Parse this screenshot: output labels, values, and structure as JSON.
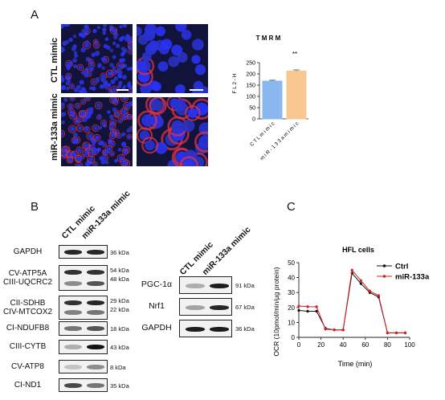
{
  "panels": {
    "a": "A",
    "b": "B",
    "c": "C"
  },
  "microscopy": {
    "row_labels": [
      "CTL mimic",
      "miR-133a mimic"
    ]
  },
  "tmrm_chart": {
    "chart_data": {
      "type": "bar",
      "title": "T M R M",
      "ylabel": "F L 2 - H",
      "categories": [
        "C T L  m i m i c",
        "m i R - 1 3 3 a  m i m i c"
      ],
      "values": [
        168,
        213
      ],
      "errors": [
        4,
        5
      ],
      "ylim": [
        0,
        250
      ],
      "yticks": [
        0,
        50,
        100,
        150,
        200,
        250
      ],
      "colors": [
        "#8ab8ee",
        "#f9c890"
      ],
      "annotation": "**"
    }
  },
  "blot_left": {
    "lanes": [
      "CTL mimic",
      "miR-133a mimic"
    ],
    "rows": [
      {
        "label": "GAPDH",
        "kda": [
          "36 kDa"
        ]
      },
      {
        "label": "CV-ATP5A\nCIII-UQCRC2",
        "kda": [
          "54 kDa",
          "48 kDa"
        ]
      },
      {
        "label": "CII-SDHB\nCIV-MTCOX2",
        "kda": [
          "29 kDa",
          "22 kDa"
        ]
      },
      {
        "label": "CI-NDUFB8",
        "kda": [
          "18 kDa"
        ]
      },
      {
        "label": "CIII-CYTB",
        "kda": [
          "43 kDa"
        ]
      },
      {
        "label": "CV-ATP8",
        "kda": [
          "8 kDa"
        ]
      },
      {
        "label": "CI-ND1",
        "kda": [
          "35 kDa"
        ]
      }
    ]
  },
  "blot_right": {
    "lanes": [
      "CTL mimic",
      "miR-133a mimic"
    ],
    "rows": [
      {
        "label": "PGC-1α",
        "kda": "91 kDa"
      },
      {
        "label": "Nrf1",
        "kda": "67 kDa"
      },
      {
        "label": "GAPDH",
        "kda": "36 kDa"
      }
    ]
  },
  "ocr_chart": {
    "chart_data": {
      "type": "line",
      "title": "HFL cells",
      "xlabel": "Time (min)",
      "ylabel": "OCR (10pmol/min/μg protein)",
      "xlim": [
        0,
        100
      ],
      "ylim": [
        0,
        50
      ],
      "xticks": [
        0,
        20,
        40,
        60,
        80,
        100
      ],
      "yticks": [
        0,
        10,
        20,
        30,
        40,
        50
      ],
      "x": [
        0,
        8,
        16,
        24,
        32,
        40,
        48,
        56,
        64,
        72,
        80,
        88,
        96
      ],
      "series": [
        {
          "name": "Ctrl",
          "color": "#111111",
          "values": [
            18,
            17.5,
            17.5,
            6,
            5,
            5,
            43,
            36,
            30,
            27,
            3,
            3,
            3
          ]
        },
        {
          "name": "miR-133a",
          "color": "#d42020",
          "values": [
            21,
            20.5,
            20.5,
            5.5,
            5,
            5,
            45,
            38,
            31,
            28,
            3,
            3,
            3
          ]
        }
      ],
      "legend": "top-right"
    }
  }
}
